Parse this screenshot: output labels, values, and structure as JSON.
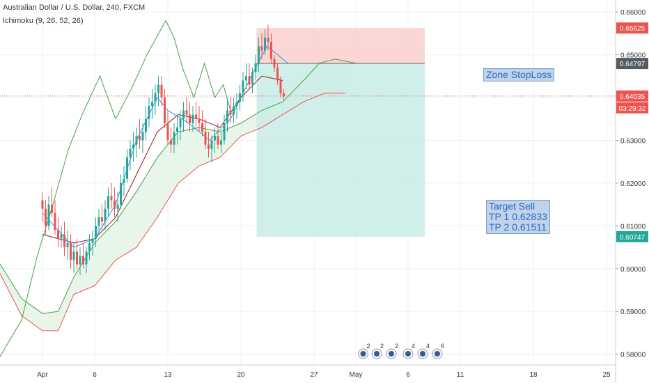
{
  "header": {
    "title": "Australian Dollar / U.S. Dollar, 240, FXCM",
    "indicator": "Ichimoku (9, 26, 52, 26)"
  },
  "colors": {
    "up": "#26a69a",
    "down": "#ef5350",
    "conversion": "#2196f3",
    "base": "#8b1a1a",
    "lagging": "#43a047",
    "spanA": "#43a047",
    "spanB": "#ef5350",
    "cloudBull": "#e8f5e9",
    "cloudBear": "#fde5e5",
    "target": "#c9ece6",
    "stop": "#f9cfcc",
    "entry": "#6e6e6e"
  },
  "chart_data": {
    "type": "candlestick",
    "symbol": "AUDUSD",
    "timeframe": "240",
    "ylim": [
      0.5775,
      0.6628
    ],
    "y_ticks": [
      0.58,
      0.59,
      0.6,
      0.61,
      0.62,
      0.63,
      0.64,
      0.65,
      0.66
    ],
    "y_tick_labels": [
      "0.58000",
      "0.59000",
      "0.60000",
      "0.61000",
      "0.62000",
      "0.63000",
      "0.64000",
      "0.65000",
      "0.66000"
    ],
    "x_range": [
      -4.3,
      27
    ],
    "x_ticks": [
      {
        "d": 0,
        "label": "Apr"
      },
      {
        "d": 5,
        "label": "6"
      },
      {
        "d": 12,
        "label": "13"
      },
      {
        "d": 19,
        "label": "20"
      },
      {
        "d": 26,
        "label": "27"
      },
      {
        "d": 30,
        "label": "May"
      },
      {
        "d": 35,
        "label": "6"
      },
      {
        "d": 40,
        "label": "11"
      },
      {
        "d": 47,
        "label": "18"
      },
      {
        "d": 54,
        "label": "25"
      }
    ],
    "candles": [
      [
        0,
        0.616,
        0.618,
        0.611,
        0.614
      ],
      [
        0.3,
        0.614,
        0.616,
        0.608,
        0.61
      ],
      [
        0.6,
        0.61,
        0.617,
        0.609,
        0.615
      ],
      [
        0.9,
        0.615,
        0.619,
        0.612,
        0.613
      ],
      [
        1.2,
        0.613,
        0.616,
        0.608,
        0.609
      ],
      [
        1.5,
        0.609,
        0.612,
        0.605,
        0.607
      ],
      [
        1.8,
        0.607,
        0.61,
        0.605,
        0.608
      ],
      [
        2.1,
        0.608,
        0.611,
        0.603,
        0.605
      ],
      [
        2.4,
        0.605,
        0.609,
        0.602,
        0.606
      ],
      [
        2.7,
        0.606,
        0.608,
        0.6,
        0.602
      ],
      [
        3.0,
        0.602,
        0.606,
        0.599,
        0.604
      ],
      [
        3.3,
        0.604,
        0.607,
        0.6,
        0.601
      ],
      [
        3.6,
        0.601,
        0.605,
        0.5985,
        0.603
      ],
      [
        3.9,
        0.603,
        0.606,
        0.6,
        0.601
      ],
      [
        4.2,
        0.601,
        0.605,
        0.599,
        0.604
      ],
      [
        4.5,
        0.604,
        0.608,
        0.602,
        0.606
      ],
      [
        4.8,
        0.606,
        0.609,
        0.603,
        0.607
      ],
      [
        5.1,
        0.607,
        0.612,
        0.605,
        0.61
      ],
      [
        5.4,
        0.61,
        0.614,
        0.608,
        0.612
      ],
      [
        5.7,
        0.612,
        0.615,
        0.609,
        0.611
      ],
      [
        6.0,
        0.611,
        0.616,
        0.609,
        0.614
      ],
      [
        6.3,
        0.614,
        0.619,
        0.612,
        0.617
      ],
      [
        6.6,
        0.617,
        0.62,
        0.614,
        0.616
      ],
      [
        6.9,
        0.616,
        0.619,
        0.612,
        0.614
      ],
      [
        7.2,
        0.614,
        0.618,
        0.611,
        0.615
      ],
      [
        7.5,
        0.615,
        0.622,
        0.614,
        0.62
      ],
      [
        7.8,
        0.62,
        0.624,
        0.617,
        0.621
      ],
      [
        8.1,
        0.621,
        0.628,
        0.62,
        0.626
      ],
      [
        8.4,
        0.626,
        0.63,
        0.623,
        0.628
      ],
      [
        8.7,
        0.628,
        0.632,
        0.625,
        0.629
      ],
      [
        9.0,
        0.629,
        0.633,
        0.626,
        0.631
      ],
      [
        9.3,
        0.631,
        0.635,
        0.628,
        0.63
      ],
      [
        9.6,
        0.63,
        0.634,
        0.627,
        0.632
      ],
      [
        9.9,
        0.632,
        0.638,
        0.63,
        0.635
      ],
      [
        10.2,
        0.635,
        0.64,
        0.633,
        0.638
      ],
      [
        10.5,
        0.638,
        0.642,
        0.635,
        0.639
      ],
      [
        10.8,
        0.639,
        0.643,
        0.636,
        0.641
      ],
      [
        11.1,
        0.641,
        0.645,
        0.638,
        0.643
      ],
      [
        11.4,
        0.643,
        0.645,
        0.638,
        0.64
      ],
      [
        11.7,
        0.64,
        0.642,
        0.633,
        0.634
      ],
      [
        12.0,
        0.634,
        0.637,
        0.629,
        0.63
      ],
      [
        12.3,
        0.63,
        0.633,
        0.627,
        0.629
      ],
      [
        12.6,
        0.629,
        0.634,
        0.627,
        0.632
      ],
      [
        12.9,
        0.632,
        0.636,
        0.629,
        0.633
      ],
      [
        13.2,
        0.633,
        0.637,
        0.63,
        0.635
      ],
      [
        13.5,
        0.635,
        0.639,
        0.632,
        0.637
      ],
      [
        13.8,
        0.637,
        0.64,
        0.634,
        0.636
      ],
      [
        14.1,
        0.636,
        0.639,
        0.632,
        0.634
      ],
      [
        14.4,
        0.634,
        0.638,
        0.632,
        0.636
      ],
      [
        14.7,
        0.636,
        0.639,
        0.633,
        0.635
      ],
      [
        15.0,
        0.635,
        0.638,
        0.632,
        0.634
      ],
      [
        15.3,
        0.634,
        0.637,
        0.631,
        0.632
      ],
      [
        15.6,
        0.632,
        0.635,
        0.628,
        0.629
      ],
      [
        15.9,
        0.629,
        0.632,
        0.626,
        0.628
      ],
      [
        16.2,
        0.628,
        0.631,
        0.625,
        0.63
      ],
      [
        16.5,
        0.63,
        0.633,
        0.627,
        0.631
      ],
      [
        16.8,
        0.631,
        0.634,
        0.628,
        0.629
      ],
      [
        17.1,
        0.629,
        0.632,
        0.627,
        0.63
      ],
      [
        17.4,
        0.63,
        0.636,
        0.629,
        0.634
      ],
      [
        17.7,
        0.634,
        0.64,
        0.632,
        0.637
      ],
      [
        18.0,
        0.637,
        0.64,
        0.634,
        0.636
      ],
      [
        18.3,
        0.636,
        0.64,
        0.634,
        0.638
      ],
      [
        18.6,
        0.638,
        0.641,
        0.635,
        0.639
      ],
      [
        18.9,
        0.639,
        0.643,
        0.637,
        0.641
      ],
      [
        19.2,
        0.641,
        0.646,
        0.639,
        0.644
      ],
      [
        19.5,
        0.644,
        0.648,
        0.642,
        0.645
      ],
      [
        19.8,
        0.645,
        0.648,
        0.642,
        0.643
      ],
      [
        20.1,
        0.643,
        0.647,
        0.641,
        0.646
      ],
      [
        20.4,
        0.646,
        0.65,
        0.644,
        0.648
      ],
      [
        20.7,
        0.648,
        0.654,
        0.646,
        0.652
      ],
      [
        21.0,
        0.652,
        0.655,
        0.649,
        0.651
      ],
      [
        21.3,
        0.651,
        0.656,
        0.65,
        0.654
      ],
      [
        21.6,
        0.654,
        0.657,
        0.651,
        0.653
      ],
      [
        21.9,
        0.653,
        0.655,
        0.648,
        0.649
      ],
      [
        22.2,
        0.649,
        0.65,
        0.646,
        0.647
      ],
      [
        22.5,
        0.647,
        0.648,
        0.643,
        0.644
      ],
      [
        22.8,
        0.644,
        0.645,
        0.64,
        0.641
      ],
      [
        23.1,
        0.641,
        0.642,
        0.6395,
        0.6403
      ]
    ],
    "conversion_line": [
      [
        0,
        0.613
      ],
      [
        3,
        0.605
      ],
      [
        5,
        0.607
      ],
      [
        7,
        0.615
      ],
      [
        9,
        0.63
      ],
      [
        11,
        0.64
      ],
      [
        12,
        0.637
      ],
      [
        14,
        0.634
      ],
      [
        16,
        0.63
      ],
      [
        18,
        0.635
      ],
      [
        20,
        0.645
      ],
      [
        21.5,
        0.652
      ],
      [
        23.5,
        0.648
      ]
    ],
    "base_line": [
      [
        0,
        0.608
      ],
      [
        3,
        0.606
      ],
      [
        5,
        0.607
      ],
      [
        7,
        0.612
      ],
      [
        9,
        0.622
      ],
      [
        11,
        0.632
      ],
      [
        13,
        0.636
      ],
      [
        15,
        0.635
      ],
      [
        17,
        0.633
      ],
      [
        19,
        0.64
      ],
      [
        21,
        0.645
      ],
      [
        23,
        0.644
      ]
    ],
    "lagging_span": [
      [
        -4.3,
        0.5785
      ],
      [
        -2,
        0.588
      ],
      [
        -0.5,
        0.603
      ],
      [
        1,
        0.615
      ],
      [
        2.5,
        0.628
      ],
      [
        3.8,
        0.636
      ],
      [
        5.5,
        0.645
      ],
      [
        7,
        0.635
      ],
      [
        8.5,
        0.642
      ],
      [
        10,
        0.65
      ],
      [
        11.8,
        0.658
      ],
      [
        12.6,
        0.654
      ],
      [
        13.4,
        0.647
      ],
      [
        14.5,
        0.64
      ],
      [
        15.5,
        0.648
      ],
      [
        16.5,
        0.64
      ],
      [
        17.3,
        0.643
      ],
      [
        18.0,
        0.637
      ]
    ],
    "span_a": [
      [
        -4.3,
        0.602
      ],
      [
        -2,
        0.593
      ],
      [
        0,
        0.5895
      ],
      [
        1.5,
        0.59
      ],
      [
        3,
        0.598
      ],
      [
        5,
        0.606
      ],
      [
        7,
        0.611
      ],
      [
        9,
        0.618
      ],
      [
        11,
        0.626
      ],
      [
        13,
        0.632
      ],
      [
        15,
        0.633
      ],
      [
        17,
        0.632
      ],
      [
        19,
        0.634
      ],
      [
        21,
        0.637
      ],
      [
        23,
        0.639
      ],
      [
        25,
        0.644
      ],
      [
        26.5,
        0.648
      ],
      [
        28,
        0.649
      ],
      [
        30,
        0.648
      ]
    ],
    "span_b": [
      [
        -4.3,
        0.6
      ],
      [
        -2,
        0.589
      ],
      [
        0,
        0.5855
      ],
      [
        1.5,
        0.5855
      ],
      [
        3,
        0.594
      ],
      [
        5,
        0.596
      ],
      [
        7,
        0.602
      ],
      [
        9,
        0.605
      ],
      [
        11,
        0.612
      ],
      [
        13,
        0.62
      ],
      [
        15,
        0.624
      ],
      [
        17,
        0.626
      ],
      [
        19,
        0.631
      ],
      [
        21,
        0.633
      ],
      [
        23,
        0.636
      ],
      [
        25,
        0.639
      ],
      [
        27,
        0.641
      ],
      [
        29,
        0.641
      ]
    ],
    "annotations": [
      {
        "kind": "stop-zone",
        "x0": 20.5,
        "x1": 36.6,
        "y0": 0.64797,
        "y1": 0.65625
      },
      {
        "kind": "target-zone",
        "x0": 20.5,
        "x1": 36.6,
        "y0": 0.60747,
        "y1": 0.64797
      },
      {
        "kind": "entry-line",
        "x0": 20.5,
        "x1": 36.6,
        "y": 0.64797
      },
      {
        "kind": "current-price-line",
        "y": 0.64035
      }
    ],
    "price_labels": [
      {
        "y": 0.65625,
        "label": "0.65625",
        "color": "#ef5350"
      },
      {
        "y": 0.64797,
        "label": "0.64797",
        "color": "#555b63"
      },
      {
        "y": 0.64035,
        "label": "0.64035",
        "color": "#ef5350"
      },
      {
        "y": 0.60747,
        "label": "0.60747",
        "color": "#26a69a"
      }
    ],
    "countdown": "03:29:32",
    "notes": {
      "stop": "Zone StopLoss",
      "target": [
        "Target Sell",
        "TP 1 0.62833",
        "TP 2 0.61511"
      ]
    },
    "events": [
      {
        "d": 30.7,
        "count": "2"
      },
      {
        "d": 32.0,
        "count": "2"
      },
      {
        "d": 33.4,
        "count": "2"
      },
      {
        "d": 35.0,
        "count": "4"
      },
      {
        "d": 36.4,
        "count": "4"
      },
      {
        "d": 37.8,
        "count": "6"
      }
    ]
  }
}
